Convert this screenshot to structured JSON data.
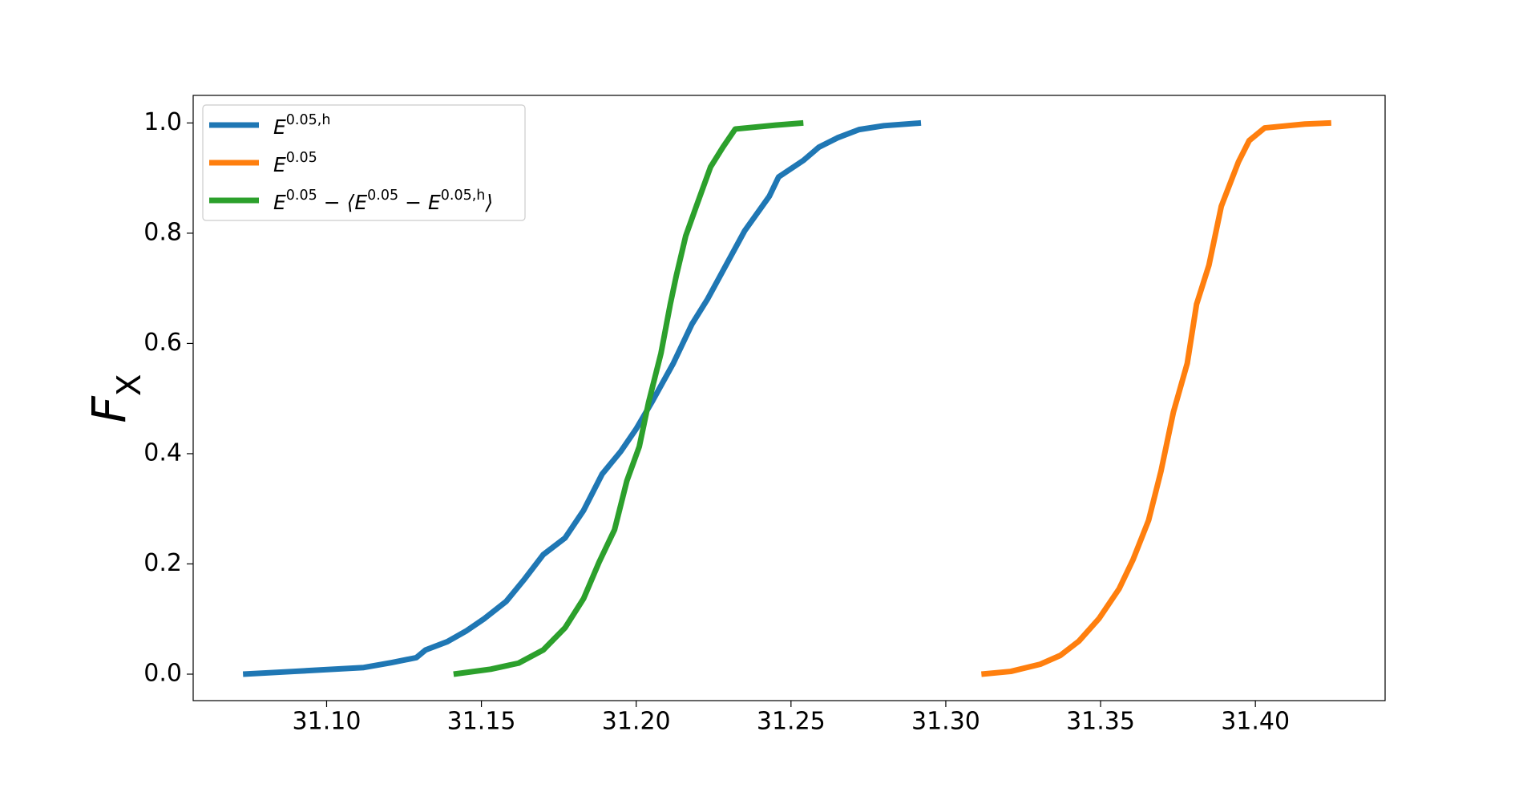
{
  "chart_data": {
    "type": "line",
    "ylabel": "F_{X}",
    "xlim": [
      31.0569,
      31.4419
    ],
    "ylim": [
      -0.048,
      1.05
    ],
    "xticks": [
      {
        "value": 31.1,
        "label": "31.10"
      },
      {
        "value": 31.15,
        "label": "31.15"
      },
      {
        "value": 31.2,
        "label": "31.20"
      },
      {
        "value": 31.25,
        "label": "31.25"
      },
      {
        "value": 31.3,
        "label": "31.30"
      },
      {
        "value": 31.35,
        "label": "31.35"
      },
      {
        "value": 31.4,
        "label": "31.40"
      }
    ],
    "yticks": [
      {
        "value": 0,
        "label": "0.0"
      },
      0.2,
      0.4,
      0.6,
      0.8,
      {
        "value": 1,
        "label": "1.0"
      }
    ],
    "legend": "upper left",
    "series": [
      {
        "name": "E^{0.05,h}",
        "color": "#1f77b4",
        "x": [
          31.073,
          31.0895,
          31.112,
          31.121,
          31.129,
          31.132,
          31.139,
          31.145,
          31.151,
          31.158,
          31.164,
          31.17,
          31.177,
          31.183,
          31.189,
          31.195,
          31.2,
          31.205,
          31.212,
          31.218,
          31.223,
          31.229,
          31.235,
          31.243,
          31.246,
          31.254,
          31.259,
          31.265,
          31.272,
          31.28,
          31.292
        ],
        "values": [
          0,
          0.005,
          0.012,
          0.021,
          0.03,
          0.044,
          0.059,
          0.078,
          0.101,
          0.132,
          0.173,
          0.217,
          0.247,
          0.297,
          0.363,
          0.404,
          0.445,
          0.493,
          0.564,
          0.635,
          0.68,
          0.742,
          0.804,
          0.867,
          0.902,
          0.932,
          0.956,
          0.973,
          0.988,
          0.995,
          1.0
        ]
      },
      {
        "name": "E^{0.05}",
        "color": "#ff7f0e",
        "x": [
          31.3115,
          31.321,
          31.3305,
          31.337,
          31.343,
          31.3495,
          31.356,
          31.3605,
          31.3655,
          31.3695,
          31.3735,
          31.378,
          31.381,
          31.385,
          31.389,
          31.3945,
          31.398,
          31.403,
          31.416,
          31.4245
        ],
        "values": [
          0,
          0.005,
          0.018,
          0.034,
          0.06,
          0.101,
          0.155,
          0.208,
          0.279,
          0.368,
          0.475,
          0.564,
          0.671,
          0.742,
          0.849,
          0.929,
          0.968,
          0.991,
          0.998,
          1.0
        ]
      },
      {
        "name": "E^{0.05} − ⟨E^{0.05} − E^{0.05,h}⟩",
        "color": "#2ca02c",
        "x": [
          31.141,
          31.153,
          31.162,
          31.17,
          31.177,
          31.183,
          31.188,
          31.193,
          31.197,
          31.201,
          31.204,
          31.208,
          31.211,
          31.213,
          31.216,
          31.22,
          31.224,
          31.228,
          31.232,
          31.245,
          31.254
        ],
        "values": [
          0,
          0.009,
          0.02,
          0.044,
          0.084,
          0.137,
          0.203,
          0.262,
          0.351,
          0.413,
          0.493,
          0.582,
          0.671,
          0.724,
          0.795,
          0.858,
          0.92,
          0.956,
          0.989,
          0.996,
          1.0
        ]
      }
    ]
  }
}
